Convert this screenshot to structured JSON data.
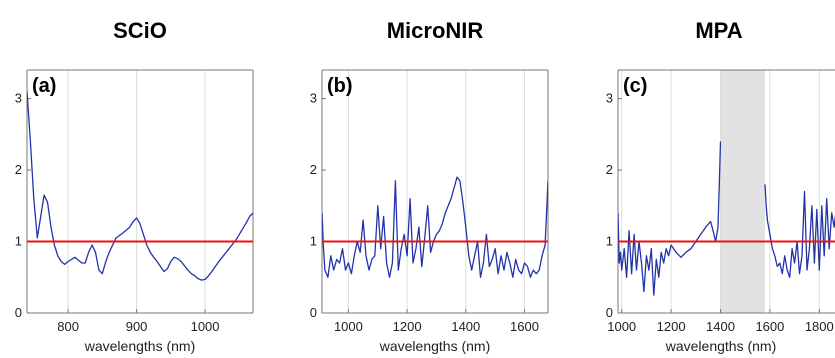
{
  "colors": {
    "series": "#2233aa",
    "reference": "#ee1111",
    "grid": "#dddddd",
    "shaded": "#e2e2e2",
    "axes": "#777777"
  },
  "chart_data": [
    {
      "type": "line",
      "title": "SCiO",
      "panel_label": "(a)",
      "xlabel": "wavelengths (nm)",
      "ylabel": "",
      "xlim": [
        740,
        1070
      ],
      "ylim": [
        0,
        3.4
      ],
      "xticks": [
        800,
        900,
        1000
      ],
      "yticks": [
        0,
        1,
        2,
        3
      ],
      "reference_line": 1,
      "x_grid": true,
      "shaded_region": null,
      "series": [
        {
          "x": [
            740,
            745,
            750,
            755,
            760,
            765,
            770,
            775,
            780,
            785,
            790,
            795,
            800,
            810,
            820,
            825,
            830,
            835,
            840,
            845,
            850,
            855,
            860,
            870,
            880,
            890,
            895,
            900,
            905,
            910,
            915,
            920,
            925,
            930,
            935,
            940,
            945,
            950,
            955,
            960,
            965,
            970,
            975,
            980,
            985,
            990,
            995,
            1000,
            1005,
            1010,
            1015,
            1020,
            1025,
            1030,
            1035,
            1040,
            1045,
            1050,
            1055,
            1060,
            1065,
            1070
          ],
          "y": [
            3.1,
            2.4,
            1.6,
            1.05,
            1.35,
            1.65,
            1.55,
            1.2,
            0.95,
            0.8,
            0.72,
            0.68,
            0.72,
            0.78,
            0.7,
            0.7,
            0.85,
            0.95,
            0.85,
            0.6,
            0.55,
            0.72,
            0.85,
            1.05,
            1.12,
            1.2,
            1.28,
            1.33,
            1.25,
            1.1,
            0.95,
            0.85,
            0.78,
            0.72,
            0.65,
            0.58,
            0.62,
            0.72,
            0.78,
            0.76,
            0.72,
            0.66,
            0.6,
            0.55,
            0.52,
            0.48,
            0.46,
            0.47,
            0.52,
            0.58,
            0.65,
            0.72,
            0.78,
            0.84,
            0.9,
            0.96,
            1.02,
            1.1,
            1.18,
            1.26,
            1.35,
            1.4
          ]
        }
      ]
    },
    {
      "type": "line",
      "title": "MicroNIR",
      "panel_label": "(b)",
      "xlabel": "wavelengths (nm)",
      "ylabel": "",
      "xlim": [
        910,
        1680
      ],
      "ylim": [
        0,
        3.4
      ],
      "xticks": [
        1000,
        1200,
        1400,
        1600
      ],
      "yticks": [
        0,
        1,
        2,
        3
      ],
      "reference_line": 1,
      "x_grid": true,
      "shaded_region": null,
      "series": [
        {
          "x": [
            910,
            915,
            920,
            930,
            940,
            950,
            960,
            970,
            980,
            990,
            1000,
            1010,
            1020,
            1030,
            1040,
            1050,
            1060,
            1070,
            1080,
            1090,
            1100,
            1110,
            1120,
            1130,
            1140,
            1150,
            1160,
            1170,
            1180,
            1190,
            1200,
            1210,
            1220,
            1230,
            1240,
            1250,
            1260,
            1270,
            1280,
            1290,
            1300,
            1310,
            1320,
            1330,
            1340,
            1350,
            1360,
            1370,
            1380,
            1390,
            1400,
            1410,
            1420,
            1430,
            1440,
            1450,
            1460,
            1470,
            1480,
            1490,
            1500,
            1510,
            1520,
            1530,
            1540,
            1550,
            1560,
            1570,
            1580,
            1590,
            1600,
            1610,
            1620,
            1630,
            1640,
            1650,
            1660,
            1670,
            1680
          ],
          "y": [
            1.4,
            0.9,
            0.6,
            0.5,
            0.8,
            0.6,
            0.75,
            0.7,
            0.9,
            0.6,
            0.7,
            0.55,
            0.8,
            1.0,
            0.85,
            1.3,
            0.8,
            0.6,
            0.75,
            0.8,
            1.5,
            0.9,
            1.35,
            0.7,
            0.5,
            0.7,
            1.85,
            0.6,
            0.9,
            1.1,
            0.8,
            1.6,
            0.7,
            0.9,
            1.2,
            0.65,
            1.05,
            1.5,
            0.85,
            1.0,
            1.1,
            1.15,
            1.25,
            1.4,
            1.5,
            1.6,
            1.75,
            1.9,
            1.85,
            1.55,
            1.2,
            0.8,
            0.6,
            0.8,
            1.0,
            0.5,
            0.7,
            1.1,
            0.65,
            0.75,
            0.9,
            0.55,
            0.8,
            0.6,
            0.85,
            0.7,
            0.5,
            0.75,
            0.6,
            0.55,
            0.7,
            0.65,
            0.5,
            0.6,
            0.55,
            0.6,
            0.8,
            0.95,
            1.85
          ]
        }
      ]
    },
    {
      "type": "line",
      "title": "MPA",
      "panel_label": "(c)",
      "xlabel": "wavelengths (nm)",
      "ylabel": "",
      "xlim": [
        985,
        1900
      ],
      "ylim": [
        0,
        3.4
      ],
      "xticks": [
        1000,
        1200,
        1400,
        1600,
        1800
      ],
      "yticks": [
        0,
        1,
        2,
        3
      ],
      "reference_line": 1,
      "x_grid": true,
      "shaded_region": [
        1400,
        1580
      ],
      "series": [
        {
          "x": [
            985,
            990,
            995,
            1000,
            1010,
            1020,
            1030,
            1040,
            1050,
            1060,
            1070,
            1080,
            1090,
            1100,
            1110,
            1120,
            1130,
            1140,
            1150,
            1160,
            1170,
            1180,
            1190,
            1200,
            1210,
            1220,
            1240,
            1260,
            1280,
            1300,
            1320,
            1340,
            1360,
            1370,
            1380,
            1390,
            1395,
            1400
          ],
          "y": [
            1.4,
            0.7,
            0.85,
            0.6,
            0.9,
            0.5,
            1.15,
            0.55,
            1.1,
            0.6,
            1.0,
            0.7,
            0.3,
            0.8,
            0.6,
            0.9,
            0.25,
            0.75,
            0.5,
            0.85,
            0.7,
            0.9,
            0.8,
            0.95,
            0.9,
            0.85,
            0.78,
            0.85,
            0.9,
            1.0,
            1.1,
            1.2,
            1.28,
            1.15,
            1.0,
            1.2,
            1.8,
            2.4
          ]
        },
        {
          "x": [
            1580,
            1585,
            1590,
            1600,
            1610,
            1620,
            1630,
            1640,
            1650,
            1660,
            1670,
            1680,
            1690,
            1700,
            1710,
            1720,
            1730,
            1740,
            1750,
            1760,
            1770,
            1780,
            1790,
            1800,
            1810,
            1820,
            1830,
            1840,
            1850,
            1860,
            1870,
            1880,
            1890,
            1900
          ],
          "y": [
            1.8,
            1.5,
            1.3,
            1.1,
            0.9,
            0.8,
            0.65,
            0.7,
            0.55,
            0.8,
            0.6,
            0.5,
            0.9,
            0.7,
            1.0,
            0.55,
            0.8,
            1.7,
            0.6,
            0.9,
            1.5,
            0.7,
            1.45,
            0.6,
            1.5,
            0.8,
            1.6,
            0.9,
            1.4,
            1.2,
            1.5,
            1.3,
            1.6,
            1.55
          ]
        }
      ]
    }
  ]
}
